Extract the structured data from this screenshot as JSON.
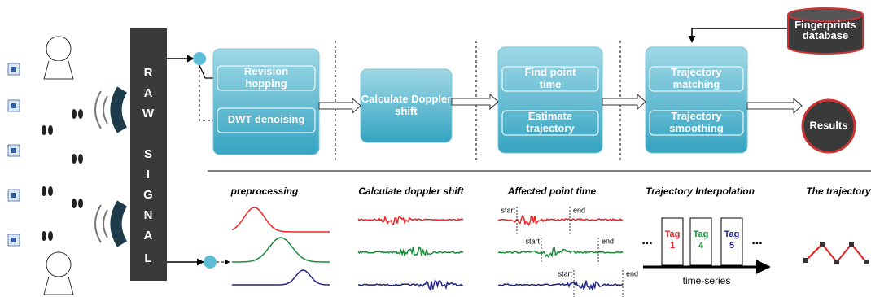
{
  "raw_signal": [
    "R",
    "A",
    "W",
    "S",
    "I",
    "G",
    "N",
    "A",
    "L"
  ],
  "stages": [
    {
      "items": [
        "Revision hopping",
        "DWT denoising"
      ]
    },
    {
      "items": [
        "Calculate Doppler shift"
      ]
    },
    {
      "items": [
        "Find point time",
        "Estimate trajectory"
      ]
    },
    {
      "items": [
        "Trajectory matching",
        "Trajectory smoothing"
      ]
    }
  ],
  "database": "Fingerprints database",
  "results": "Results",
  "panels": [
    "preprocessing",
    "Calculate doppler shift",
    "Affected point time",
    "Trajectory Interpolation",
    "The trajectory"
  ],
  "markers": {
    "start": "start",
    "end": "end"
  },
  "tags": [
    {
      "name": "Tag",
      "num": "1"
    },
    {
      "name": "Tag",
      "num": "4"
    },
    {
      "name": "Tag",
      "num": "5"
    }
  ],
  "ellipsis": "...",
  "time_axis": "time-series"
}
